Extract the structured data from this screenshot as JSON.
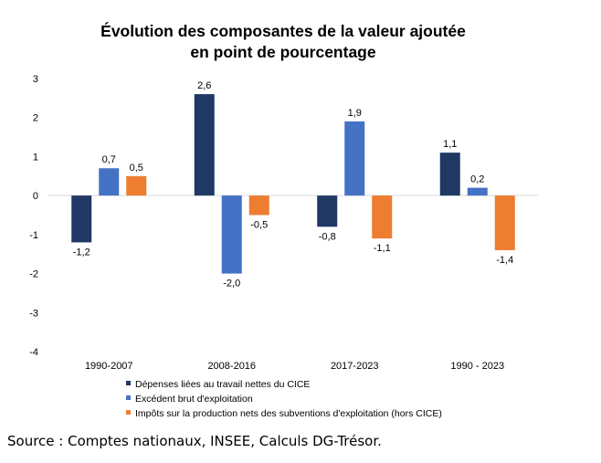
{
  "chart_data": {
    "type": "bar",
    "title_line1": "Évolution des composantes de la valeur ajoutée",
    "title_line2": "en point de pourcentage",
    "categories": [
      "1990-2007",
      "2008-2016",
      "2017-2023",
      "1990 - 2023"
    ],
    "series": [
      {
        "name": "Dépenses liées au travail nettes du CICE",
        "color": "#1F3864",
        "values": [
          -1.2,
          2.6,
          -0.8,
          1.1
        ],
        "labels": [
          "-1,2",
          "2,6",
          "-0,8",
          "1,1"
        ]
      },
      {
        "name": "Excédent brut d'exploitation",
        "color": "#4472C4",
        "values": [
          0.7,
          -2.0,
          1.9,
          0.2
        ],
        "labels": [
          "0,7",
          "-2,0",
          "1,9",
          "0,2"
        ]
      },
      {
        "name": "Impôts sur la production nets des subventions d'exploitation (hors CICE)",
        "color": "#ED7D31",
        "values": [
          0.5,
          -0.5,
          -1.1,
          -1.4
        ],
        "labels": [
          "0,5",
          "-0,5",
          "-1,1",
          "-1,4"
        ]
      }
    ],
    "ylim": [
      -4,
      3
    ],
    "yticks": [
      3,
      2,
      1,
      0,
      -1,
      -2,
      -3,
      -4
    ],
    "ytick_labels": [
      "3",
      "2",
      "1",
      "0",
      "-1",
      "-2",
      "-3",
      "-4"
    ],
    "grid": false,
    "legend_position": "bottom-left"
  },
  "source": "Source : Comptes nationaux, INSEE, Calculs DG-Trésor."
}
